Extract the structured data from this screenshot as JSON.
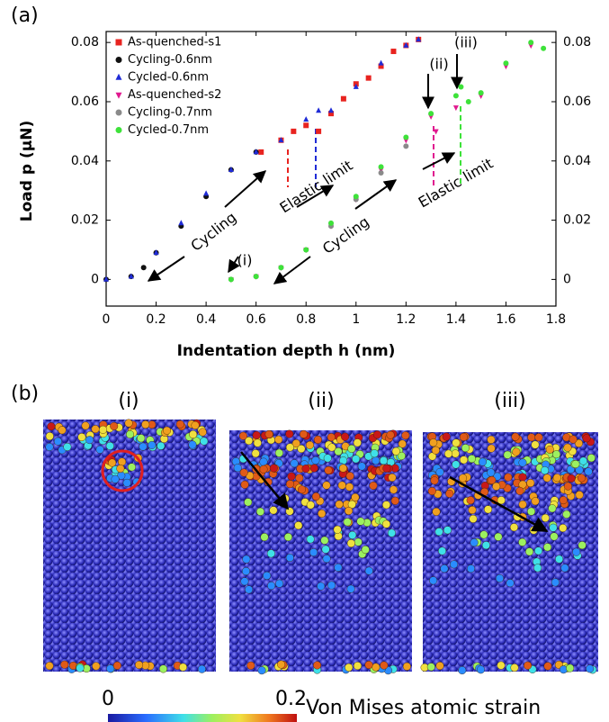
{
  "chart_data": {
    "type": "scatter",
    "panel_label": "(a)",
    "xlabel": "Indentation depth h (nm)",
    "ylabel": "Load p (μN)",
    "xlim": [
      0,
      1.8
    ],
    "xticks": [
      0,
      0.2,
      0.4,
      0.6,
      0.8,
      1,
      1.2,
      1.4,
      1.6,
      1.8
    ],
    "ylim": [
      -0.009,
      0.0837
    ],
    "yticks": [
      0,
      0.02,
      0.04,
      0.06,
      0.08
    ],
    "y2lim": [
      -0.009,
      0.0837
    ],
    "y2ticks": [
      0,
      0.02,
      0.04,
      0.06,
      0.08
    ],
    "series": [
      {
        "name": "As-quenched-s1",
        "color": "#e8231f",
        "marker": "square",
        "x": [
          0.62,
          0.7,
          0.75,
          0.8,
          0.85,
          0.9,
          0.95,
          1.0,
          1.05,
          1.1,
          1.15,
          1.2,
          1.25
        ],
        "values": [
          0.043,
          0.047,
          0.05,
          0.052,
          0.05,
          0.056,
          0.061,
          0.066,
          0.068,
          0.072,
          0.077,
          0.079,
          0.081
        ]
      },
      {
        "name": "Cycling-0.6nm",
        "color": "#111111",
        "marker": "circle",
        "x": [
          0,
          0.1,
          0.15,
          0.2,
          0.3,
          0.4,
          0.5,
          0.6
        ],
        "values": [
          0,
          0.001,
          0.004,
          0.009,
          0.018,
          0.028,
          0.037,
          0.043
        ]
      },
      {
        "name": "Cycled-0.6nm",
        "color": "#1f2bd6",
        "marker": "triangle-up",
        "x": [
          0,
          0.1,
          0.2,
          0.3,
          0.4,
          0.5,
          0.6,
          0.7,
          0.8,
          0.85,
          0.9,
          1.0,
          1.1,
          1.2,
          1.25
        ],
        "values": [
          0,
          0.001,
          0.009,
          0.019,
          0.029,
          0.037,
          0.043,
          0.047,
          0.054,
          0.057,
          0.057,
          0.065,
          0.073,
          0.079,
          0.081
        ]
      },
      {
        "name": "As-quenched-s2",
        "color": "#e0198f",
        "marker": "triangle-down",
        "x": [
          0.5,
          0.6,
          0.7,
          0.8,
          0.9,
          1.0,
          1.1,
          1.2,
          1.3,
          1.32,
          1.4,
          1.5,
          1.6,
          1.7
        ],
        "values": [
          0,
          0.001,
          0.004,
          0.01,
          0.018,
          0.027,
          0.037,
          0.047,
          0.055,
          0.05,
          0.058,
          0.062,
          0.072,
          0.079
        ]
      },
      {
        "name": "Cycling-0.7nm",
        "color": "#8a8a8a",
        "marker": "circle",
        "x": [
          0.5,
          0.6,
          0.7,
          0.8,
          0.9,
          1.0,
          1.1,
          1.2
        ],
        "values": [
          0,
          0.001,
          0.004,
          0.01,
          0.018,
          0.027,
          0.036,
          0.045
        ]
      },
      {
        "name": "Cycled-0.7nm",
        "color": "#3ee23a",
        "marker": "circle",
        "x": [
          0.5,
          0.6,
          0.7,
          0.8,
          0.9,
          1.0,
          1.1,
          1.2,
          1.3,
          1.4,
          1.42,
          1.45,
          1.5,
          1.6,
          1.7,
          1.75
        ],
        "values": [
          0,
          0.001,
          0.004,
          0.01,
          0.019,
          0.028,
          0.038,
          0.048,
          0.056,
          0.062,
          0.065,
          0.06,
          0.063,
          0.073,
          0.08,
          0.078
        ]
      }
    ],
    "annotations": [
      "Cycling",
      "Cycling",
      "Elastic limit",
      "Elastic limit",
      "(i)",
      "(ii)",
      "(iii)"
    ]
  },
  "panel_b": {
    "label": "(b)",
    "snapshots": [
      "(i)",
      "(ii)",
      "(iii)"
    ],
    "colorbar": {
      "ticks": [
        0,
        0.2
      ],
      "label": "Von Mises atomic strain"
    }
  }
}
